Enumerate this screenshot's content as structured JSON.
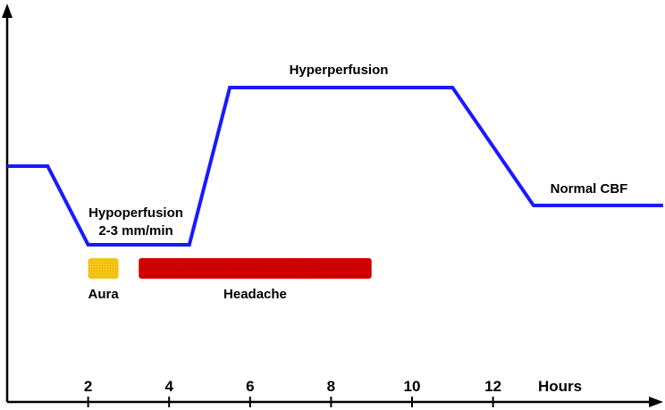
{
  "chart_data": {
    "type": "line",
    "title": "",
    "xlabel": "Hours",
    "ylabel": "",
    "xlim": [
      0,
      16.4
    ],
    "ylim": [
      0,
      3.85
    ],
    "x_ticks": [
      2,
      4,
      6,
      8,
      10,
      12
    ],
    "x_tick_labels": [
      "2",
      "4",
      "6",
      "8",
      "10",
      "12"
    ],
    "grid": false,
    "legend": "none",
    "line_color": "#1a1aff",
    "series": [
      {
        "name": "",
        "points": [
          {
            "x": 0,
            "y": 2.4
          },
          {
            "x": 1.0,
            "y": 2.4
          },
          {
            "x": 2.0,
            "y": 1.6
          },
          {
            "x": 4.5,
            "y": 1.6
          },
          {
            "x": 5.5,
            "y": 3.2
          },
          {
            "x": 11.0,
            "y": 3.2
          },
          {
            "x": 13.0,
            "y": 2.0
          },
          {
            "x": 16.2,
            "y": 2.0
          }
        ]
      }
    ],
    "bars": [
      {
        "label": "Aura",
        "start": 2.0,
        "end": 2.75,
        "color": "#f5c518"
      },
      {
        "label": "Headache",
        "start": 3.25,
        "end": 9.0,
        "color": "#d40000"
      }
    ],
    "annotations": {
      "hypoperfusion": "Hypoperfusion",
      "hypoperfusion_rate": "2-3 mm/min",
      "hyperperfusion": "Hyperperfusion",
      "normal_cbf": "Normal CBF"
    }
  }
}
